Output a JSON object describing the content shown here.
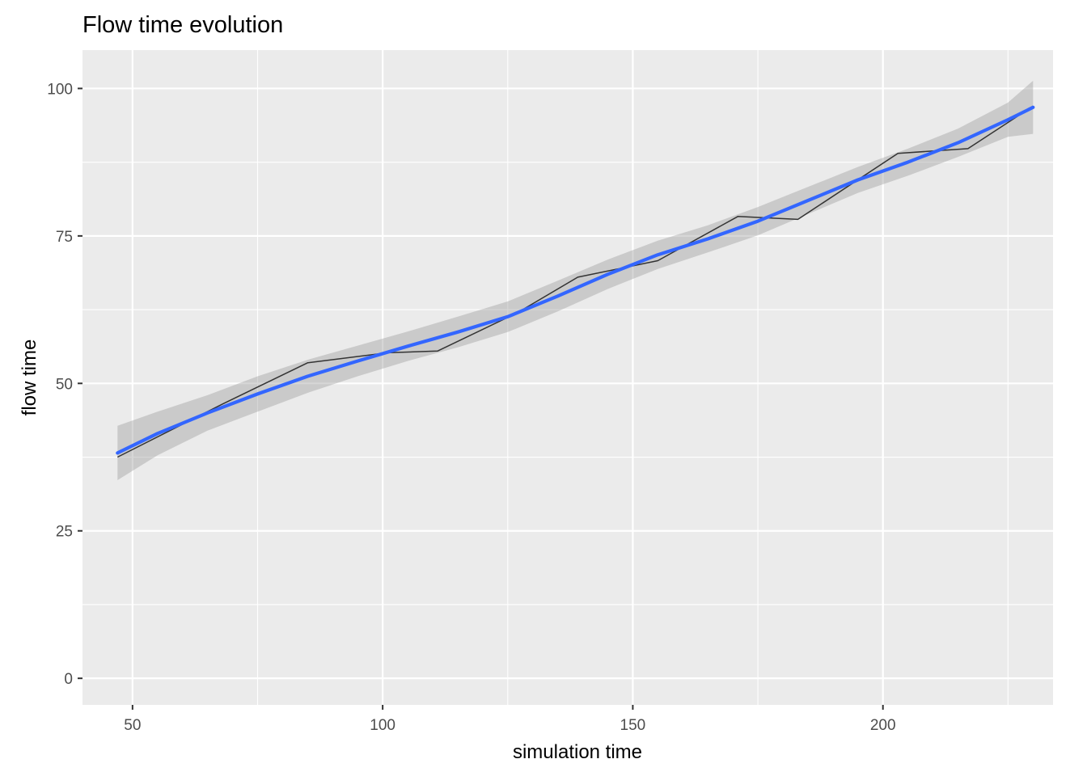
{
  "chart_data": {
    "type": "line",
    "title": "Flow time evolution",
    "xlabel": "simulation time",
    "ylabel": "flow time",
    "xlim": [
      40,
      234
    ],
    "ylim": [
      -4.5,
      106.5
    ],
    "x_ticks": [
      50,
      100,
      150,
      200
    ],
    "x_minor_ticks": [
      75,
      125,
      175,
      225
    ],
    "y_ticks": [
      0,
      25,
      50,
      75,
      100
    ],
    "y_minor_ticks": [
      12.5,
      37.5,
      62.5,
      87.5
    ],
    "x_tick_labels": [
      "50",
      "100",
      "150",
      "200"
    ],
    "y_tick_labels": [
      "0",
      "25",
      "50",
      "75",
      "100"
    ],
    "grid": true,
    "background": "#ebebeb",
    "series": [
      {
        "kind": "line",
        "color": "#333333",
        "x": [
          47,
          68,
          85,
          101,
          111,
          127,
          139,
          155,
          171,
          183,
          203,
          217,
          230
        ],
        "y": [
          37.5,
          46.5,
          53.5,
          55.2,
          55.5,
          62,
          68,
          70.8,
          78.3,
          77.8,
          89,
          89.8,
          97
        ]
      },
      {
        "kind": "smooth",
        "color": "#3366ff",
        "ribbon_color": "#999999",
        "x": [
          47,
          55,
          65,
          75,
          85,
          95,
          105,
          115,
          125,
          135,
          145,
          155,
          165,
          175,
          185,
          195,
          205,
          215,
          225,
          230
        ],
        "y": [
          38.2,
          41.5,
          45,
          48.2,
          51.2,
          53.8,
          56.3,
          58.7,
          61.3,
          64.8,
          68.5,
          71.8,
          74.5,
          77.5,
          81,
          84.5,
          87.5,
          90.8,
          94.7,
          96.8
        ],
        "lower": [
          33.6,
          37.8,
          42,
          45.2,
          48.4,
          51.2,
          53.8,
          56.1,
          58.7,
          62.2,
          66,
          69.4,
          72.2,
          75.1,
          78.7,
          82.3,
          85.2,
          88.4,
          91.8,
          92.3
        ],
        "upper": [
          42.8,
          45.2,
          48,
          51.2,
          54,
          56.4,
          58.8,
          61.3,
          63.9,
          67.4,
          71,
          74.2,
          76.8,
          79.9,
          83.3,
          86.7,
          89.8,
          93.2,
          97.6,
          101.3
        ]
      }
    ]
  }
}
